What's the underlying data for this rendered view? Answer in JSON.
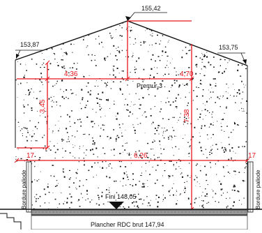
{
  "drawing": {
    "elevations": {
      "ridge": "155,42",
      "eave_left": "153,87",
      "eave_right": "153,75"
    },
    "dimensions": {
      "left_width": "4,36",
      "right_width": "4,70",
      "full_width": "6,26",
      "left_height": "3,45",
      "right_height": "7,38",
      "margin_left": "17",
      "margin_right": "17"
    },
    "labels": {
      "floor": "Premur 3",
      "fini": "Fini 148,05",
      "plancher": "Plancher RDC brut 147,94",
      "bordure_left": "Bordure paliode",
      "bordure_right": "Bordure paliode"
    },
    "colors": {
      "dimension": "#e8141b",
      "line": "#111111",
      "speckle": "#1a1a1a",
      "base_band": "#9a9a9a"
    }
  }
}
